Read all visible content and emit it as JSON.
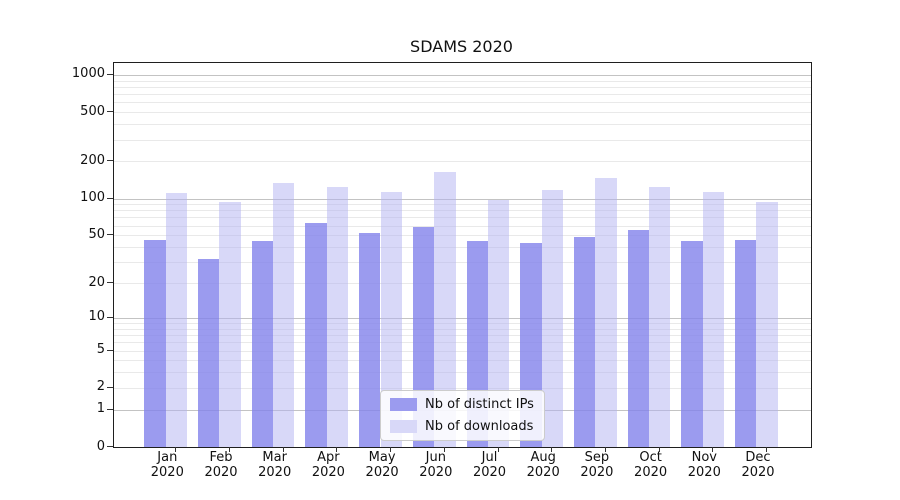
{
  "chart_data": {
    "type": "bar",
    "title": "SDAMS 2020",
    "categories": [
      "Jan",
      "Feb",
      "Mar",
      "Apr",
      "May",
      "Jun",
      "Jul",
      "Aug",
      "Sep",
      "Oct",
      "Nov",
      "Dec"
    ],
    "category_year": "2020",
    "series": [
      {
        "name": "Nb of distinct IPs",
        "color": "#9b9bef",
        "fill": "rgba(130,130,235,0.8)",
        "values": [
          46,
          32,
          45,
          63,
          52,
          58,
          45,
          43,
          48,
          55,
          45,
          46
        ]
      },
      {
        "name": "Nb of downloads",
        "color": "#d8d8f8",
        "fill": "rgba(177,177,241,0.5)",
        "values": [
          110,
          94,
          133,
          125,
          112,
          164,
          97,
          117,
          146,
          125,
          112,
          94
        ]
      }
    ],
    "yscale": "log1p",
    "yticks": [
      0,
      1,
      2,
      5,
      10,
      20,
      50,
      100,
      200,
      500,
      1000
    ],
    "yticks_major_grid": [
      1,
      10,
      100,
      1000
    ],
    "yticks_minor_grid": [
      2,
      3,
      4,
      5,
      6,
      7,
      8,
      9,
      20,
      30,
      40,
      50,
      60,
      70,
      80,
      90,
      200,
      300,
      400,
      500,
      600,
      700,
      800,
      900
    ],
    "ylim": [
      0,
      1250
    ],
    "grid": true,
    "legend": {
      "position": "lower-center",
      "entries": [
        "Nb of distinct IPs",
        "Nb of downloads"
      ]
    }
  }
}
